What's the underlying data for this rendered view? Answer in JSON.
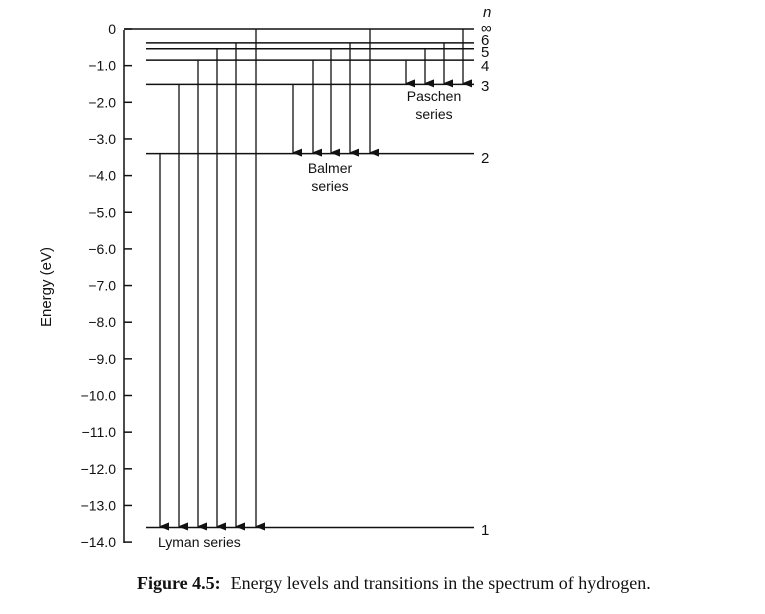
{
  "figure": {
    "caption_label": "Figure 4.5:",
    "caption_text": "Energy levels and transitions in the spectrum of hydrogen.",
    "ylabel": "Energy (eV)",
    "ticks": [
      "0",
      "−1.0",
      "−2.0",
      "−3.0",
      "−4.0",
      "−5.0",
      "−6.0",
      "−7.0",
      "−8.0",
      "−9.0",
      "−10.0",
      "−11.0",
      "−12.0",
      "−13.0",
      "−14.0"
    ],
    "n_header": "n",
    "level_labels": [
      "∞",
      "6",
      "5",
      "4",
      "3",
      "2",
      "1"
    ],
    "series": [
      {
        "name_lines": [
          "Lyman series"
        ]
      },
      {
        "name_lines": [
          "Balmer",
          "series"
        ]
      },
      {
        "name_lines": [
          "Paschen",
          "series"
        ]
      }
    ]
  },
  "chart_data": {
    "type": "energy-level diagram",
    "ylabel": "Energy (eV)",
    "ylim": [
      -14,
      0
    ],
    "levels": [
      {
        "n": "∞",
        "energy": 0
      },
      {
        "n": "6",
        "energy": -0.38
      },
      {
        "n": "5",
        "energy": -0.54
      },
      {
        "n": "4",
        "energy": -0.85
      },
      {
        "n": "3",
        "energy": -1.51
      },
      {
        "n": "2",
        "energy": -3.4
      },
      {
        "n": "1",
        "energy": -13.6
      }
    ],
    "series": [
      {
        "name": "Lyman series",
        "final_n": 1,
        "initial_n": [
          "2",
          "3",
          "4",
          "5",
          "6",
          "∞"
        ]
      },
      {
        "name": "Balmer series",
        "final_n": 2,
        "initial_n": [
          "3",
          "4",
          "5",
          "6",
          "∞"
        ]
      },
      {
        "name": "Paschen series",
        "final_n": 3,
        "initial_n": [
          "4",
          "5",
          "6",
          "∞"
        ]
      }
    ]
  }
}
